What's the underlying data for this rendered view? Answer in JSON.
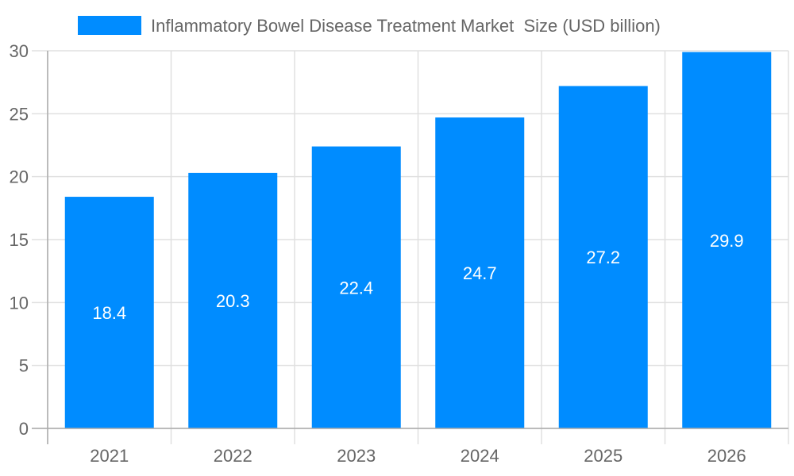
{
  "chart_data": {
    "type": "bar",
    "categories": [
      "2021",
      "2022",
      "2023",
      "2024",
      "2025",
      "2026"
    ],
    "series": [
      {
        "name": "Inflammatory Bowel Disease Treatment Market  Size (USD billion)",
        "values": [
          18.4,
          20.3,
          22.4,
          24.7,
          27.2,
          29.9
        ],
        "data_labels": [
          "18.4",
          "20.3",
          "22.4",
          "24.7",
          "27.2",
          "29.9"
        ]
      }
    ],
    "ylim": [
      0,
      30
    ],
    "yticks": [
      "0",
      "5",
      "10",
      "15",
      "20",
      "25",
      "30"
    ],
    "grid": true,
    "legend_position": "top",
    "colors": {
      "bar": "#008cff",
      "grid": "#e0e0e0",
      "axis": "#aaaaaa",
      "text": "#666666"
    }
  }
}
